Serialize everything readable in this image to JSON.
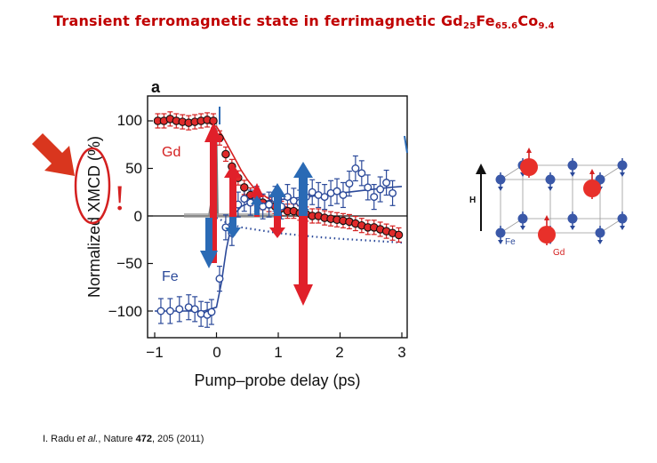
{
  "slide": {
    "title_parts": [
      "Transient ferromagnetic state in ferrimagnetic Gd",
      "25",
      "Fe",
      "65.6",
      "Co",
      "9.4"
    ],
    "citation": {
      "authors": "I. Radu ",
      "etal": "et al.",
      "journal": ", Nature ",
      "volume": "472",
      "rest": ", 205 (2011)"
    },
    "exclamation": "!"
  },
  "colors": {
    "title": "#c00000",
    "gd": "#d42020",
    "fe": "#2c4a9a",
    "arrow_red": "#e0202a",
    "arrow_blue": "#2a6ab5",
    "callout": "#d9361e"
  },
  "chart_data": {
    "type": "scatter",
    "panel_label": "a",
    "xlabel": "Pump–probe delay (ps)",
    "ylabel": "Normalized XMCD (%)",
    "xlim": [
      -1.05,
      3.05
    ],
    "ylim": [
      -125,
      125
    ],
    "xticks": [
      -1,
      0,
      1,
      2,
      3
    ],
    "xtick_labels": [
      "−1",
      "0",
      "1",
      "2",
      "3"
    ],
    "yticks": [
      100,
      50,
      0,
      -50,
      -100
    ],
    "ytick_labels": [
      "100",
      "50",
      "0",
      "−50",
      "−100"
    ],
    "series": [
      {
        "name": "Gd",
        "marker": "filled-circle",
        "x": [
          -0.95,
          -0.85,
          -0.75,
          -0.65,
          -0.55,
          -0.45,
          -0.35,
          -0.25,
          -0.15,
          -0.05,
          0.05,
          0.15,
          0.25,
          0.35,
          0.45,
          0.55,
          0.65,
          0.75,
          0.85,
          0.95,
          1.05,
          1.15,
          1.25,
          1.35,
          1.45,
          1.55,
          1.65,
          1.75,
          1.85,
          1.95,
          2.05,
          2.15,
          2.25,
          2.35,
          2.45,
          2.55,
          2.65,
          2.75,
          2.85,
          2.95
        ],
        "y": [
          100,
          100,
          102,
          100,
          99,
          98,
          99,
          100,
          101,
          100,
          82,
          65,
          52,
          40,
          30,
          22,
          18,
          14,
          12,
          10,
          8,
          5,
          5,
          3,
          2,
          0,
          0,
          -2,
          -3,
          -4,
          -5,
          -6,
          -8,
          -10,
          -12,
          -12,
          -14,
          -16,
          -18,
          -20
        ]
      },
      {
        "name": "Fe",
        "marker": "open-circle",
        "x": [
          -0.9,
          -0.75,
          -0.6,
          -0.45,
          -0.35,
          -0.25,
          -0.15,
          -0.08,
          0.05,
          0.15,
          0.25,
          0.35,
          0.45,
          0.55,
          0.65,
          0.75,
          0.85,
          0.95,
          1.05,
          1.15,
          1.25,
          1.35,
          1.45,
          1.55,
          1.65,
          1.75,
          1.85,
          1.95,
          2.05,
          2.15,
          2.25,
          2.35,
          2.45,
          2.55,
          2.65,
          2.75,
          2.85
        ],
        "y": [
          -100,
          -100,
          -98,
          -96,
          -98,
          -103,
          -104,
          -101,
          -66,
          -12,
          -18,
          12,
          18,
          14,
          18,
          10,
          12,
          18,
          10,
          20,
          16,
          14,
          20,
          25,
          22,
          20,
          24,
          26,
          22,
          34,
          50,
          45,
          30,
          20,
          28,
          35,
          24
        ]
      }
    ],
    "fits": [
      {
        "name": "Gd fit",
        "style": "solid",
        "x": [
          -1,
          -0.2,
          0,
          0.1,
          0.2,
          0.3,
          0.4,
          0.5,
          0.6,
          0.8,
          1.0,
          1.2,
          1.4,
          1.6,
          1.8,
          2.0,
          2.2,
          2.4,
          2.6,
          2.8,
          3.0
        ],
        "y": [
          100,
          100,
          94,
          84,
          72,
          60,
          48,
          38,
          30,
          20,
          12,
          8,
          5,
          2,
          0,
          -3,
          -6,
          -9,
          -12,
          -15,
          -18
        ]
      },
      {
        "name": "Fe fit",
        "style": "solid",
        "x": [
          -1,
          -0.2,
          0,
          0.08,
          0.16,
          0.24,
          0.32,
          0.4,
          0.5,
          0.7,
          1.0,
          1.3,
          1.6,
          2.0,
          2.4,
          2.8,
          3.0
        ],
        "y": [
          -100,
          -100,
          -96,
          -70,
          -35,
          -10,
          4,
          10,
          13,
          15,
          17,
          19,
          21,
          24,
          27,
          30,
          31
        ]
      },
      {
        "name": "Gd dotted",
        "style": "dotted",
        "x": [
          0,
          0.2,
          0.4,
          0.6,
          0.8,
          1.0,
          1.3,
          1.6,
          2.0,
          2.5,
          3.0
        ],
        "y": [
          -2,
          -8,
          -12,
          -14,
          -16,
          -18,
          -20,
          -22,
          -24,
          -26,
          -28
        ]
      }
    ],
    "series_labels": [
      "Gd",
      "Fe"
    ]
  },
  "diagram": {
    "field_label": "H",
    "fe_label": "Fe",
    "gd_label": "Gd"
  }
}
